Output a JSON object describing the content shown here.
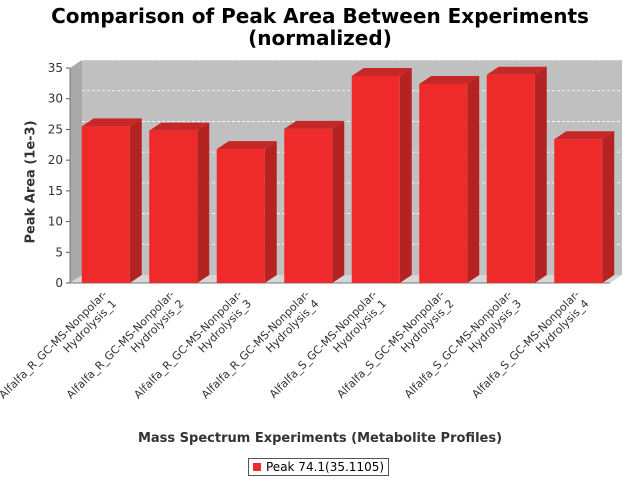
{
  "chart_data": {
    "type": "bar",
    "title_lines": [
      "Comparison of Peak Area Between Experiments",
      "(normalized)"
    ],
    "xlabel": "Mass Spectrum Experiments (Metabolite Profiles)",
    "ylabel": "Peak Area (1e-3)",
    "ylim": [
      0,
      35
    ],
    "yticks": [
      0,
      5,
      10,
      15,
      20,
      25,
      30,
      35
    ],
    "categories": [
      [
        "Alfalfa_R_GC-MS-Nonpolar-",
        "Hydrolysis_1"
      ],
      [
        "Alfalfa_R_GC-MS-Nonpolar-",
        "Hydrolysis_2"
      ],
      [
        "Alfalfa_R_GC-MS-Nonpolar-",
        "Hydrolysis_3"
      ],
      [
        "Alfalfa_R_GC-MS-Nonpolar-",
        "Hydrolysis_4"
      ],
      [
        "Alfalfa_S_GC-MS-Nonpolar-",
        "Hydrolysis_1"
      ],
      [
        "Alfalfa_S_GC-MS-Nonpolar-",
        "Hydrolysis_2"
      ],
      [
        "Alfalfa_S_GC-MS-Nonpolar-",
        "Hydrolysis_3"
      ],
      [
        "Alfalfa_S_GC-MS-Nonpolar-",
        "Hydrolysis_4"
      ]
    ],
    "series": [
      {
        "name": "Peak 74.1(35.1105)",
        "color": "#ef2a2a",
        "values": [
          25.5,
          24.8,
          21.8,
          25.1,
          33.7,
          32.4,
          33.9,
          23.4
        ]
      }
    ],
    "grid": true,
    "legend_position": "bottom",
    "plot_background": "#c0c0c0"
  }
}
